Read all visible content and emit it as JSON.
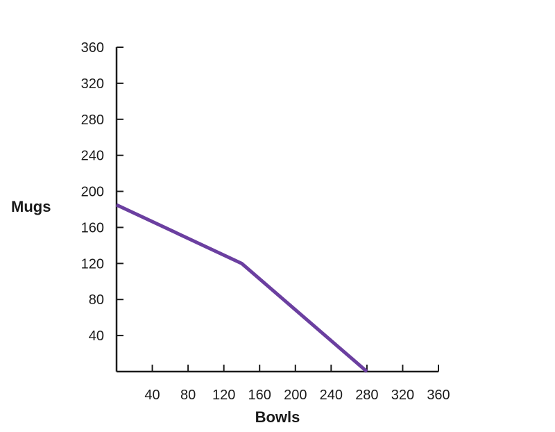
{
  "chart_data": {
    "type": "line",
    "title": "",
    "xlabel": "Bowls",
    "ylabel": "Mugs",
    "xlim": [
      0,
      360
    ],
    "ylim": [
      0,
      360
    ],
    "x_ticks": [
      40,
      80,
      120,
      160,
      200,
      240,
      280,
      320,
      360
    ],
    "y_ticks": [
      40,
      80,
      120,
      160,
      200,
      240,
      280,
      320,
      360
    ],
    "grid": false,
    "legend": "none",
    "series": [
      {
        "color": "#6b3fa0",
        "points": [
          {
            "x": 0,
            "y": 185
          },
          {
            "x": 140,
            "y": 120
          },
          {
            "x": 280,
            "y": 0
          }
        ]
      }
    ]
  }
}
